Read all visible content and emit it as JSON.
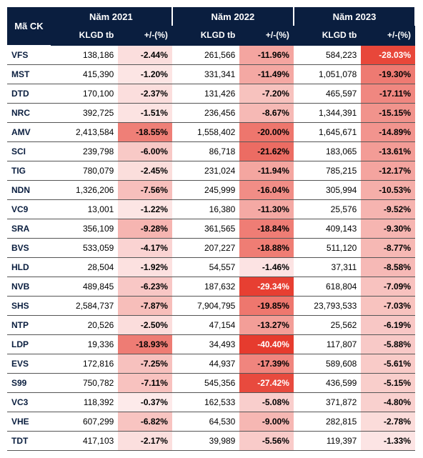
{
  "headers": {
    "code_label": "Mã CK",
    "years": [
      "Năm 2021",
      "Năm 2022",
      "Năm 2023"
    ],
    "vol_label": "KLGD tb",
    "pct_label": "+/-(%)"
  },
  "style": {
    "header_bg": "#0a1e3f",
    "header_fg": "#ffffff",
    "row_border": "#555555",
    "code_color": "#0a1e3f",
    "font_size_body": 12,
    "font_size_header": 13,
    "heat_min_color": "#fdecec",
    "heat_max_color": "#e63b2e",
    "heat_text_light_threshold": -25.0
  },
  "rows": [
    {
      "code": "VFS",
      "y21_vol": "138,186",
      "y21_pct": -2.44,
      "y22_vol": "261,566",
      "y22_pct": -11.96,
      "y23_vol": "584,223",
      "y23_pct": -28.03
    },
    {
      "code": "MST",
      "y21_vol": "415,390",
      "y21_pct": -1.2,
      "y22_vol": "331,341",
      "y22_pct": -11.49,
      "y23_vol": "1,051,078",
      "y23_pct": -19.3
    },
    {
      "code": "DTD",
      "y21_vol": "170,100",
      "y21_pct": -2.37,
      "y22_vol": "131,426",
      "y22_pct": -7.2,
      "y23_vol": "465,597",
      "y23_pct": -17.11
    },
    {
      "code": "NRC",
      "y21_vol": "392,725",
      "y21_pct": -1.51,
      "y22_vol": "236,456",
      "y22_pct": -8.67,
      "y23_vol": "1,344,391",
      "y23_pct": -15.15
    },
    {
      "code": "AMV",
      "y21_vol": "2,413,584",
      "y21_pct": -18.55,
      "y22_vol": "1,558,402",
      "y22_pct": -20.0,
      "y23_vol": "1,645,671",
      "y23_pct": -14.89
    },
    {
      "code": "SCI",
      "y21_vol": "239,798",
      "y21_pct": -6.0,
      "y22_vol": "86,718",
      "y22_pct": -21.62,
      "y23_vol": "183,065",
      "y23_pct": -13.61
    },
    {
      "code": "TIG",
      "y21_vol": "780,079",
      "y21_pct": -2.45,
      "y22_vol": "231,024",
      "y22_pct": -11.94,
      "y23_vol": "785,215",
      "y23_pct": -12.17
    },
    {
      "code": "NDN",
      "y21_vol": "1,326,206",
      "y21_pct": -7.56,
      "y22_vol": "245,999",
      "y22_pct": -16.04,
      "y23_vol": "305,994",
      "y23_pct": -10.53
    },
    {
      "code": "VC9",
      "y21_vol": "13,001",
      "y21_pct": -1.22,
      "y22_vol": "16,380",
      "y22_pct": -11.3,
      "y23_vol": "25,576",
      "y23_pct": -9.52
    },
    {
      "code": "SRA",
      "y21_vol": "356,109",
      "y21_pct": -9.28,
      "y22_vol": "361,565",
      "y22_pct": -18.84,
      "y23_vol": "409,143",
      "y23_pct": -9.3
    },
    {
      "code": "BVS",
      "y21_vol": "533,059",
      "y21_pct": -4.17,
      "y22_vol": "207,227",
      "y22_pct": -18.88,
      "y23_vol": "511,120",
      "y23_pct": -8.77
    },
    {
      "code": "HLD",
      "y21_vol": "28,504",
      "y21_pct": -1.92,
      "y22_vol": "54,557",
      "y22_pct": -1.46,
      "y23_vol": "37,311",
      "y23_pct": -8.58
    },
    {
      "code": "NVB",
      "y21_vol": "489,845",
      "y21_pct": -6.23,
      "y22_vol": "187,632",
      "y22_pct": -29.34,
      "y23_vol": "618,804",
      "y23_pct": -7.09
    },
    {
      "code": "SHS",
      "y21_vol": "2,584,737",
      "y21_pct": -7.87,
      "y22_vol": "7,904,795",
      "y22_pct": -19.85,
      "y23_vol": "23,793,533",
      "y23_pct": -7.03
    },
    {
      "code": "NTP",
      "y21_vol": "20,526",
      "y21_pct": -2.5,
      "y22_vol": "47,154",
      "y22_pct": -13.27,
      "y23_vol": "25,562",
      "y23_pct": -6.19
    },
    {
      "code": "LDP",
      "y21_vol": "19,336",
      "y21_pct": -18.93,
      "y22_vol": "34,493",
      "y22_pct": -40.4,
      "y23_vol": "117,807",
      "y23_pct": -5.88
    },
    {
      "code": "EVS",
      "y21_vol": "172,816",
      "y21_pct": -7.25,
      "y22_vol": "44,937",
      "y22_pct": -17.39,
      "y23_vol": "589,608",
      "y23_pct": -5.61
    },
    {
      "code": "S99",
      "y21_vol": "750,782",
      "y21_pct": -7.11,
      "y22_vol": "545,356",
      "y22_pct": -27.42,
      "y23_vol": "436,599",
      "y23_pct": -5.15
    },
    {
      "code": "VC3",
      "y21_vol": "118,392",
      "y21_pct": -0.37,
      "y22_vol": "162,533",
      "y22_pct": -5.08,
      "y23_vol": "371,872",
      "y23_pct": -4.8
    },
    {
      "code": "VHE",
      "y21_vol": "607,299",
      "y21_pct": -6.82,
      "y22_vol": "64,530",
      "y22_pct": -9.0,
      "y23_vol": "282,815",
      "y23_pct": -2.78
    },
    {
      "code": "TDT",
      "y21_vol": "417,103",
      "y21_pct": -2.17,
      "y22_vol": "39,989",
      "y22_pct": -5.56,
      "y23_vol": "119,397",
      "y23_pct": -1.33
    }
  ]
}
